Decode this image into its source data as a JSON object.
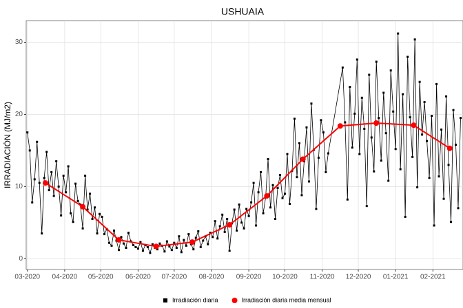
{
  "chart_data": {
    "type": "line",
    "title": "USHUAIA",
    "y_label": "IRRADIACIÓN (MJ/m2)",
    "xlim": [
      -1,
      362
    ],
    "ylim": [
      -1.5,
      33
    ],
    "xticks": [
      {
        "value": 0,
        "label": "03-2020"
      },
      {
        "value": 31,
        "label": "04-2020"
      },
      {
        "value": 61,
        "label": "05-2020"
      },
      {
        "value": 92,
        "label": "06-2020"
      },
      {
        "value": 122,
        "label": "07-2020"
      },
      {
        "value": 153,
        "label": "08-2020"
      },
      {
        "value": 184,
        "label": "09-2020"
      },
      {
        "value": 214,
        "label": "10-2020"
      },
      {
        "value": 245,
        "label": "11-2020"
      },
      {
        "value": 275,
        "label": "12-2020"
      },
      {
        "value": 306,
        "label": "01-2021"
      },
      {
        "value": 337,
        "label": "02-2021"
      }
    ],
    "yticks": [
      0,
      10,
      20,
      30
    ],
    "grid": true,
    "legend": "bottom",
    "series": [
      {
        "name": "Irradiación diaria",
        "color": "#000000",
        "marker": "square",
        "x": [
          0,
          2,
          4,
          6,
          8,
          10,
          12,
          14,
          16,
          18,
          20,
          22,
          24,
          26,
          28,
          30,
          32,
          34,
          36,
          38,
          40,
          42,
          44,
          46,
          48,
          50,
          52,
          54,
          56,
          58,
          60,
          62,
          64,
          66,
          68,
          70,
          72,
          74,
          76,
          78,
          80,
          82,
          84,
          86,
          88,
          90,
          92,
          94,
          96,
          98,
          100,
          102,
          104,
          106,
          108,
          110,
          112,
          114,
          116,
          118,
          120,
          122,
          124,
          126,
          128,
          130,
          132,
          134,
          136,
          138,
          140,
          142,
          144,
          146,
          148,
          150,
          152,
          154,
          156,
          158,
          160,
          162,
          164,
          166,
          168,
          170,
          172,
          174,
          176,
          178,
          180,
          182,
          184,
          186,
          188,
          190,
          192,
          194,
          196,
          198,
          200,
          202,
          204,
          206,
          208,
          210,
          212,
          214,
          216,
          218,
          220,
          222,
          224,
          226,
          228,
          230,
          232,
          234,
          236,
          238,
          240,
          242,
          244,
          246,
          248,
          250,
          262,
          264,
          266,
          268,
          270,
          272,
          274,
          276,
          278,
          280,
          282,
          284,
          286,
          288,
          290,
          292,
          294,
          296,
          298,
          300,
          302,
          304,
          306,
          308,
          310,
          312,
          314,
          316,
          318,
          320,
          322,
          324,
          326,
          328,
          330,
          332,
          334,
          336,
          338,
          340,
          342,
          344,
          346,
          348,
          350,
          352,
          354,
          356,
          358,
          360
        ],
        "values": [
          17.5,
          15,
          7.8,
          11,
          16.2,
          10.5,
          3.5,
          11.2,
          14.8,
          9.5,
          12,
          8.7,
          13.5,
          10,
          6,
          11.5,
          9.2,
          12.8,
          6.3,
          5.1,
          10.4,
          8,
          7.5,
          4.2,
          11.5,
          6.8,
          9,
          5.5,
          7.1,
          3.5,
          6.2,
          5.8,
          3.4,
          4.1,
          2.2,
          1.8,
          3.9,
          2.5,
          1.2,
          3.0,
          2.1,
          1.5,
          3.6,
          2.4,
          1.9,
          1.6,
          1.4,
          2.3,
          1.1,
          1.9,
          1.6,
          0.8,
          2.0,
          1.5,
          1.3,
          2.1,
          1.8,
          1.0,
          2.4,
          1.7,
          1.2,
          2.2,
          1.5,
          3.1,
          0.9,
          2.6,
          1.8,
          3.4,
          2.0,
          1.3,
          2.9,
          3.8,
          1.6,
          2.5,
          3.1,
          2.0,
          3.6,
          3.0,
          5.2,
          2.8,
          4.5,
          6.1,
          3.7,
          5.5,
          1.1,
          4.9,
          6.8,
          3.9,
          7.5,
          5.0,
          4.2,
          6.9,
          5.9,
          7.8,
          10.5,
          4.6,
          9.2,
          12.0,
          6.3,
          8.5,
          13.8,
          7.1,
          10.2,
          5.5,
          9.8,
          11.6,
          8.4,
          9.0,
          14.5,
          7.6,
          12.2,
          19.4,
          11.3,
          16.0,
          8.8,
          13.5,
          18.2,
          10.7,
          21.5,
          15.1,
          6.9,
          14.0,
          19.2,
          17.5,
          12.0,
          14.6,
          26.5,
          18.9,
          8.2,
          23.8,
          15.4,
          20.1,
          27.6,
          14.5,
          22.3,
          18.0,
          7.3,
          25.5,
          16.8,
          12.1,
          27.3,
          19.5,
          13.6,
          23.0,
          17.4,
          10.8,
          26.1,
          20.4,
          15.2,
          31.2,
          12.4,
          22.8,
          5.8,
          28.0,
          19.6,
          14.1,
          30.4,
          9.9,
          24.5,
          17.2,
          21.7,
          16.3,
          11.2,
          19.8,
          4.6,
          24.2,
          11.4,
          17.9,
          8.3,
          22.5,
          13.0,
          5.1,
          20.6,
          15.8,
          7.0,
          19.5
        ]
      },
      {
        "name": "Irradiación diaria media mensual",
        "color": "#ff0000",
        "marker": "circle",
        "x": [
          15,
          46,
          76,
          107,
          137,
          168,
          199,
          229,
          260,
          290,
          321,
          351
        ],
        "values": [
          10.5,
          7.2,
          2.6,
          1.7,
          2.3,
          4.7,
          8.7,
          13.8,
          18.4,
          18.8,
          18.5,
          15.3
        ]
      }
    ]
  }
}
